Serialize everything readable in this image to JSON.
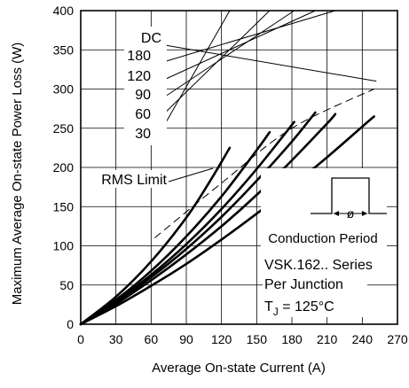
{
  "chart_data": {
    "type": "line",
    "title": "",
    "xlabel": "Average On-state Current (A)",
    "ylabel": "Maximum Average On-state Power Loss (W)",
    "xlim": [
      0,
      270
    ],
    "ylim": [
      0,
      400
    ],
    "x_ticks": [
      0,
      30,
      60,
      90,
      120,
      150,
      180,
      210,
      240,
      270
    ],
    "y_ticks": [
      0,
      50,
      100,
      150,
      200,
      250,
      300,
      350,
      400
    ],
    "grid": true,
    "series": [
      {
        "name": "DC",
        "x": [
          0,
          30,
          60,
          90,
          120,
          150,
          180,
          210,
          240,
          250
        ],
        "y": [
          0,
          23,
          49,
          77,
          108,
          141,
          176,
          213,
          252,
          265
        ]
      },
      {
        "name": "180",
        "x": [
          0,
          30,
          60,
          90,
          120,
          150,
          180,
          210,
          217
        ],
        "y": [
          0,
          26,
          56,
          89,
          125,
          165,
          209,
          256,
          268
        ]
      },
      {
        "name": "120",
        "x": [
          0,
          30,
          60,
          90,
          120,
          150,
          180,
          200
        ],
        "y": [
          0,
          28,
          60,
          96,
          137,
          183,
          233,
          270
        ]
      },
      {
        "name": "90",
        "x": [
          0,
          30,
          60,
          90,
          120,
          150,
          182
        ],
        "y": [
          0,
          29,
          63,
          102,
          147,
          198,
          258
        ]
      },
      {
        "name": "60",
        "x": [
          0,
          30,
          60,
          90,
          120,
          150,
          161
        ],
        "y": [
          0,
          31,
          68,
          112,
          163,
          222,
          245
        ]
      },
      {
        "name": "30",
        "x": [
          0,
          30,
          60,
          90,
          110,
          127
        ],
        "y": [
          0,
          35,
          80,
          136,
          182,
          225
        ]
      },
      {
        "name": "RMS Limit",
        "dashed": true,
        "x": [
          63,
          120,
          180,
          250
        ],
        "y": [
          110,
          180,
          250,
          300
        ]
      }
    ],
    "curve_ends": {
      "DC": [
        252,
        310
      ],
      "180": [
        217,
        400
      ],
      "120": [
        200,
        400
      ],
      "90": [
        182,
        400
      ],
      "60": [
        161,
        400
      ],
      "30": [
        127,
        400
      ]
    },
    "annotations": {
      "curve_labels": [
        "DC",
        "180",
        "120",
        "90",
        "60",
        "30"
      ],
      "rms_limit": "RMS Limit",
      "conduction_period": "Conduction Period",
      "phi_symbol": "ø",
      "series_line": "VSK.162.. Series",
      "junction_line": "Per Junction",
      "temp_prefix": "T",
      "temp_sub": "J",
      "temp_value": " = 125°C"
    }
  }
}
